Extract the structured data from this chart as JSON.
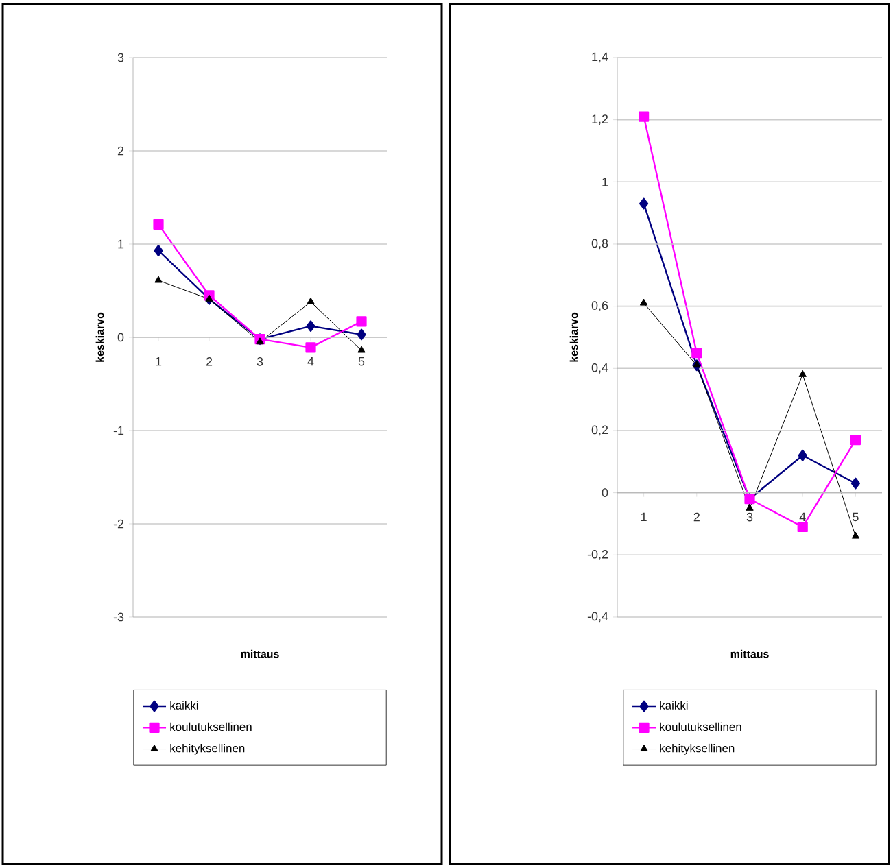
{
  "chart_data": [
    {
      "type": "line",
      "categories": [
        "1",
        "2",
        "3",
        "4",
        "5"
      ],
      "xlabel": "mittaus",
      "ylabel": "keskiarvo",
      "ylim": [
        -3,
        3
      ],
      "yticks": [
        -3,
        -2,
        -1,
        0,
        1,
        2,
        3
      ],
      "grid": "y",
      "legend": "bottom",
      "line_style": "solid",
      "series": [
        {
          "name": "kaikki",
          "color": "#000080",
          "marker": "diamond",
          "values": [
            0.93,
            0.41,
            -0.02,
            0.12,
            0.03
          ]
        },
        {
          "name": "koulutuksellinen",
          "color": "#ff00ff",
          "marker": "square",
          "values": [
            1.21,
            0.45,
            -0.02,
            -0.11,
            0.17
          ]
        },
        {
          "name": "kehityksellinen",
          "color": "#000000",
          "marker": "triangle",
          "values": [
            0.61,
            0.41,
            -0.05,
            0.38,
            -0.14
          ]
        }
      ]
    },
    {
      "type": "line",
      "categories": [
        "1",
        "2",
        "3",
        "4",
        "5"
      ],
      "xlabel": "mittaus",
      "ylabel": "keskiarvo",
      "ylim": [
        -0.4,
        1.4
      ],
      "yticks": [
        {
          "value": -0.4,
          "label": "-0,4"
        },
        {
          "value": -0.2,
          "label": "-0,2"
        },
        0,
        {
          "value": 0.2,
          "label": "0,2"
        },
        {
          "value": 0.4,
          "label": "0,4"
        },
        {
          "value": 0.6,
          "label": "0,6"
        },
        {
          "value": 0.8,
          "label": "0,8"
        },
        1,
        {
          "value": 1.2,
          "label": "1,2"
        },
        {
          "value": 1.4,
          "label": "1,4"
        }
      ],
      "grid": "y",
      "legend": "bottom",
      "line_style": "solid",
      "series": [
        {
          "name": "kaikki",
          "color": "#000080",
          "marker": "diamond",
          "values": [
            0.93,
            0.41,
            -0.02,
            0.12,
            0.03
          ]
        },
        {
          "name": "koulutuksellinen",
          "color": "#ff00ff",
          "marker": "square",
          "values": [
            1.21,
            0.45,
            -0.02,
            -0.11,
            0.17
          ]
        },
        {
          "name": "kehityksellinen",
          "color": "#000000",
          "marker": "triangle",
          "values": [
            0.61,
            0.41,
            -0.05,
            0.38,
            -0.14
          ]
        }
      ]
    }
  ]
}
